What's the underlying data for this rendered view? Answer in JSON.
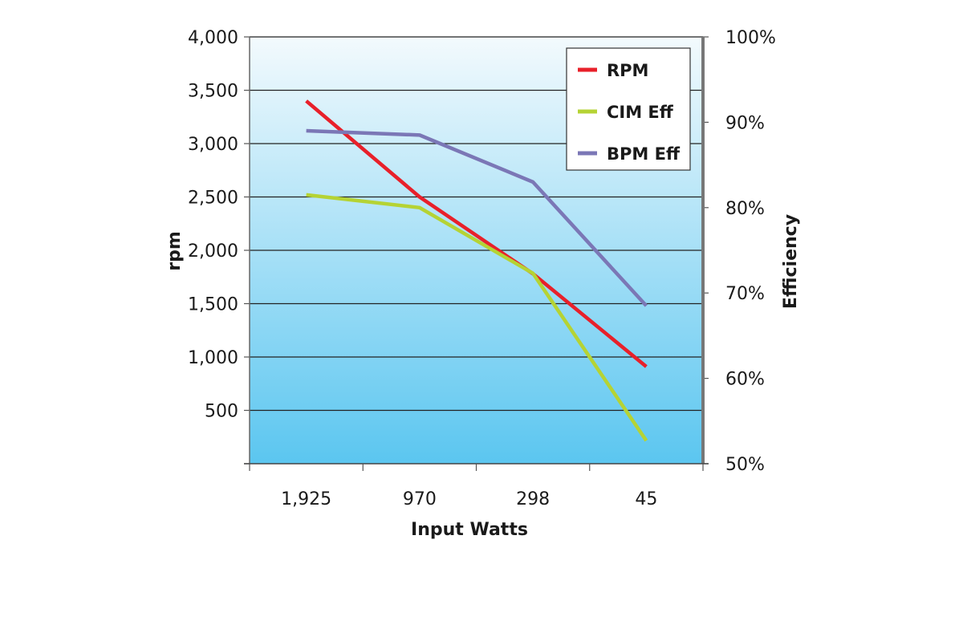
{
  "chart_data": {
    "type": "line",
    "categories": [
      "1,925",
      "970",
      "298",
      "45"
    ],
    "xlabel": "Input Watts",
    "ylabel": "rpm",
    "y2label": "Efficiency",
    "ylim": [
      0,
      4000
    ],
    "y2lim": [
      0.5,
      1.0
    ],
    "y_ticks": [
      500,
      1000,
      1500,
      2000,
      2500,
      3000,
      3500,
      4000
    ],
    "y_tick_labels": [
      "500",
      "1,000",
      "1,500",
      "2,000",
      "2,500",
      "3,000",
      "3,500",
      "4,000"
    ],
    "y2_ticks": [
      0.5,
      0.6,
      0.7,
      0.8,
      0.9,
      1.0
    ],
    "y2_tick_labels": [
      "50%",
      "60%",
      "70%",
      "80%",
      "90%",
      "100%"
    ],
    "grid": true,
    "legend_position": "top-right",
    "series": [
      {
        "name": "RPM",
        "axis": "left",
        "color": "#e8202a",
        "values": [
          3400,
          2500,
          1780,
          910
        ]
      },
      {
        "name": "CIM Eff",
        "axis": "right",
        "color": "#b5d334",
        "values": [
          0.815,
          0.8,
          0.723,
          0.527
        ]
      },
      {
        "name": "BPM Eff",
        "axis": "right",
        "color": "#7b77b6",
        "values": [
          0.89,
          0.885,
          0.83,
          0.685
        ]
      }
    ],
    "plot_background": {
      "top": "#f3fafd",
      "bottom": "#5bc6f0"
    }
  }
}
